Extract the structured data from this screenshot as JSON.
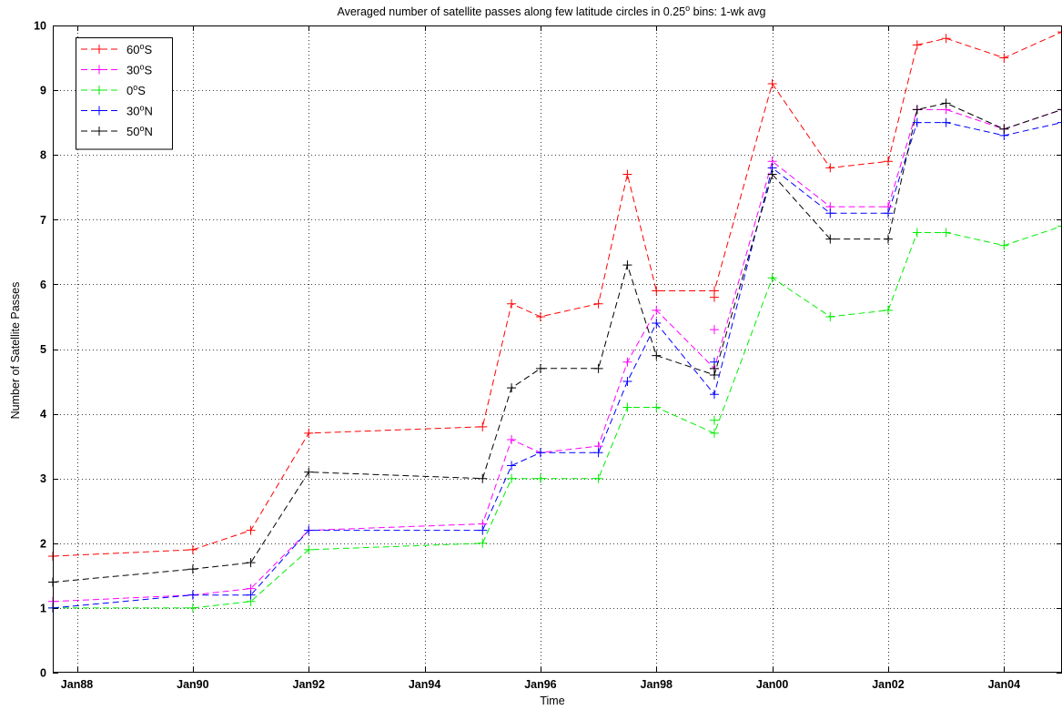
{
  "chart_data": {
    "type": "line",
    "title": {
      "before": "Averaged number of satellite passes along few latitude circles in 0.25",
      "sup": "o",
      "after": " bins: 1-wk avg"
    },
    "xlabel": "Time",
    "ylabel": "Number of Satellite Passes",
    "x_ticks": [
      "Jan88",
      "Jan90",
      "Jan92",
      "Jan94",
      "Jan96",
      "Jan98",
      "Jan00",
      "Jan02",
      "Jan04"
    ],
    "x_tick_dates": [
      "1988-01",
      "1990-01",
      "1992-01",
      "1994-01",
      "1996-01",
      "1998-01",
      "2000-01",
      "2002-01",
      "2004-01"
    ],
    "xlim": [
      "1987-08",
      "2005-01"
    ],
    "ylim": [
      0,
      10
    ],
    "y_ticks": [
      0,
      1,
      2,
      3,
      4,
      5,
      6,
      7,
      8,
      9,
      10
    ],
    "grid": true,
    "legend_position": "top-left",
    "x": [
      "1987-08",
      "1990-01",
      "1991-01",
      "1992-01",
      "1995-01",
      "1995-07",
      "1996-01",
      "1997-01",
      "1997-07",
      "1998-01",
      "1999-01",
      "2000-01",
      "2001-01",
      "2002-01",
      "2002-07",
      "2003-01",
      "2004-01",
      "2005-01"
    ],
    "series": [
      {
        "name": "60",
        "sup": "o",
        "suffix": "S",
        "color": "#ff0000",
        "values": [
          1.8,
          1.9,
          2.2,
          3.7,
          3.8,
          5.7,
          5.5,
          5.7,
          7.7,
          5.9,
          5.9,
          9.1,
          7.8,
          7.9,
          9.7,
          9.8,
          9.5,
          9.9
        ],
        "extra": [
          {
            "x": "1999-01",
            "y": 5.8
          }
        ]
      },
      {
        "name": "30",
        "sup": "o",
        "suffix": "S",
        "color": "#ff00ff",
        "values": [
          1.1,
          1.2,
          1.3,
          2.2,
          2.3,
          3.6,
          3.4,
          3.5,
          4.8,
          5.6,
          4.7,
          7.9,
          7.2,
          7.2,
          8.7,
          8.7,
          8.4,
          8.7
        ],
        "extra": [
          {
            "x": "1999-01",
            "y": 5.3
          }
        ]
      },
      {
        "name": "0",
        "sup": "o",
        "suffix": "S",
        "color": "#00ee00",
        "values": [
          1.0,
          1.0,
          1.1,
          1.9,
          2.0,
          3.0,
          3.0,
          3.0,
          4.1,
          4.1,
          3.7,
          6.1,
          5.5,
          5.6,
          6.8,
          6.8,
          6.6,
          6.9
        ],
        "extra": [
          {
            "x": "1999-01",
            "y": 3.9
          }
        ]
      },
      {
        "name": "30",
        "sup": "o",
        "suffix": "N",
        "color": "#0000ff",
        "values": [
          1.0,
          1.2,
          1.2,
          2.2,
          2.2,
          3.2,
          3.4,
          3.4,
          4.5,
          5.4,
          4.3,
          7.8,
          7.1,
          7.1,
          8.5,
          8.5,
          8.3,
          8.5
        ],
        "extra": [
          {
            "x": "1999-01",
            "y": 4.8
          }
        ]
      },
      {
        "name": "50",
        "sup": "o",
        "suffix": "N",
        "color": "#000000",
        "values": [
          1.4,
          1.6,
          1.7,
          3.1,
          3.0,
          4.4,
          4.7,
          4.7,
          6.3,
          4.9,
          4.6,
          7.7,
          6.7,
          6.7,
          8.7,
          8.8,
          8.4,
          8.7
        ],
        "extra": [
          {
            "x": "1999-01",
            "y": 4.7
          }
        ]
      }
    ]
  }
}
